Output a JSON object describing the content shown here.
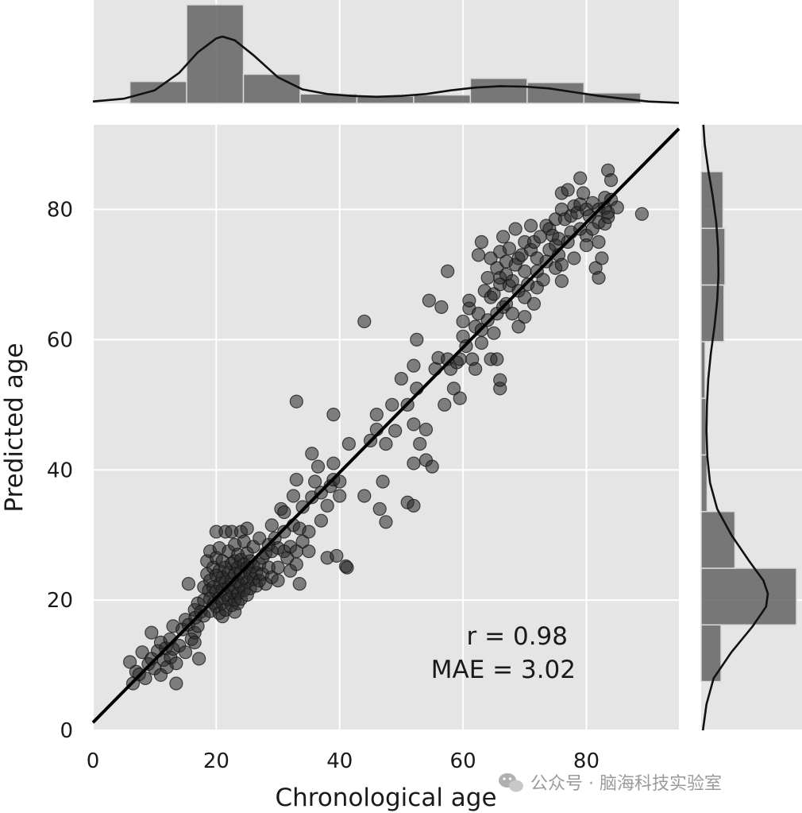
{
  "chart_data": {
    "type": "scatter",
    "xlabel": "Chronological age",
    "ylabel": "Predicted age",
    "xlim": [
      0,
      95
    ],
    "ylim": [
      0,
      93
    ],
    "xticks": [
      0,
      20,
      40,
      60,
      80
    ],
    "yticks": [
      0,
      20,
      40,
      60,
      80
    ],
    "grid": true,
    "marginals": "histogram + kde on top (x) and right (y)",
    "annotation_r": "r = 0.98",
    "annotation_mae": "MAE = 3.02",
    "regression": {
      "slope": 0.96,
      "intercept": 1.2
    },
    "points": [
      [
        6,
        10.5
      ],
      [
        6.5,
        7.2
      ],
      [
        7,
        9
      ],
      [
        7.5,
        8.6
      ],
      [
        8,
        12
      ],
      [
        8.5,
        8
      ],
      [
        9,
        10.2
      ],
      [
        9.5,
        15
      ],
      [
        9.5,
        11
      ],
      [
        10,
        9.5
      ],
      [
        10.5,
        12.2
      ],
      [
        11,
        8.5
      ],
      [
        11,
        13.5
      ],
      [
        11.5,
        10.8
      ],
      [
        11.8,
        12.6
      ],
      [
        12,
        9.7
      ],
      [
        12.5,
        14
      ],
      [
        12.6,
        11.2
      ],
      [
        13,
        16
      ],
      [
        13,
        12.5
      ],
      [
        13.5,
        7.2
      ],
      [
        13.5,
        10.3
      ],
      [
        14,
        13
      ],
      [
        14.5,
        15.5
      ],
      [
        15,
        12
      ],
      [
        15,
        17
      ],
      [
        15.5,
        16.2
      ],
      [
        16,
        14
      ],
      [
        16.5,
        18.5
      ],
      [
        16.5,
        15
      ],
      [
        16.6,
        17.3
      ],
      [
        17,
        16
      ],
      [
        16.5,
        13.5
      ],
      [
        17.2,
        11
      ],
      [
        15.5,
        22.5
      ],
      [
        17,
        19.5
      ],
      [
        17.5,
        18.2
      ],
      [
        18,
        22
      ],
      [
        18,
        20
      ],
      [
        18,
        17.6
      ],
      [
        18.5,
        26
      ],
      [
        18.5,
        24
      ],
      [
        18.8,
        21.5
      ],
      [
        19,
        27.5
      ],
      [
        19,
        23
      ],
      [
        19,
        20.2
      ],
      [
        19,
        18.3
      ],
      [
        19.5,
        25
      ],
      [
        19.5,
        22
      ],
      [
        19.6,
        19.5
      ],
      [
        20,
        30.5
      ],
      [
        20,
        26.5
      ],
      [
        20,
        23.8
      ],
      [
        20,
        21.3
      ],
      [
        20,
        19
      ],
      [
        20.5,
        28
      ],
      [
        20.5,
        24.5
      ],
      [
        20.6,
        22.5
      ],
      [
        20.5,
        20.3
      ],
      [
        20.5,
        18
      ],
      [
        21,
        26
      ],
      [
        21,
        23.5
      ],
      [
        21,
        21.6
      ],
      [
        21,
        19.5
      ],
      [
        21,
        17.5
      ],
      [
        21.5,
        30.5
      ],
      [
        21.5,
        25
      ],
      [
        21.5,
        22.8
      ],
      [
        21.6,
        20.8
      ],
      [
        21.5,
        18.5
      ],
      [
        22,
        27.5
      ],
      [
        22,
        24.2
      ],
      [
        22,
        22
      ],
      [
        22,
        20.1
      ],
      [
        22.5,
        30.5
      ],
      [
        22.5,
        25.6
      ],
      [
        22.5,
        23.2
      ],
      [
        22.6,
        21.2
      ],
      [
        22.5,
        19.2
      ],
      [
        23,
        28.5
      ],
      [
        23,
        26
      ],
      [
        23,
        24
      ],
      [
        23,
        22
      ],
      [
        23,
        20
      ],
      [
        23,
        18.2
      ],
      [
        23.5,
        27
      ],
      [
        23.5,
        25
      ],
      [
        23.5,
        22.8
      ],
      [
        23.5,
        21
      ],
      [
        23.5,
        19.5
      ],
      [
        24,
        30.5
      ],
      [
        24,
        26.2
      ],
      [
        24,
        24.2
      ],
      [
        24,
        22.2
      ],
      [
        24,
        20.2
      ],
      [
        24.5,
        29
      ],
      [
        24.5,
        25.5
      ],
      [
        24.5,
        23.5
      ],
      [
        24.5,
        21.5
      ],
      [
        25,
        31
      ],
      [
        25,
        27.2
      ],
      [
        25,
        25
      ],
      [
        25,
        22.8
      ],
      [
        25,
        20.8
      ],
      [
        25.5,
        26
      ],
      [
        25.5,
        24
      ],
      [
        25.5,
        21.8
      ],
      [
        26,
        28.2
      ],
      [
        26,
        25.2
      ],
      [
        26,
        23.2
      ],
      [
        26.5,
        24.2
      ],
      [
        26.5,
        22.2
      ],
      [
        27,
        29.5
      ],
      [
        27,
        25.5
      ],
      [
        27,
        23
      ],
      [
        27.5,
        26.5
      ],
      [
        27.5,
        24
      ],
      [
        28,
        27.2
      ],
      [
        28,
        22.5
      ],
      [
        28.5,
        28.5
      ],
      [
        28.5,
        25
      ],
      [
        29,
        31.5
      ],
      [
        29,
        27.5
      ],
      [
        29,
        23.5
      ],
      [
        29.5,
        29.5
      ],
      [
        30,
        28
      ],
      [
        30,
        25
      ],
      [
        30,
        23
      ],
      [
        30.5,
        34
      ],
      [
        31,
        33.5
      ],
      [
        31,
        30.5
      ],
      [
        31,
        27.5
      ],
      [
        31.5,
        26.5
      ],
      [
        32,
        24.5
      ],
      [
        32,
        28.2
      ],
      [
        32.5,
        36
      ],
      [
        32.5,
        31.5
      ],
      [
        33,
        38.5
      ],
      [
        33,
        27.5
      ],
      [
        33,
        25.5
      ],
      [
        33.5,
        31
      ],
      [
        33.5,
        22.5
      ],
      [
        34,
        29
      ],
      [
        34,
        34.3
      ],
      [
        35,
        30.5
      ],
      [
        35,
        27.5
      ],
      [
        35.5,
        35.8
      ],
      [
        36,
        38.2
      ],
      [
        36.5,
        40.5
      ],
      [
        37,
        36.5
      ],
      [
        37,
        32.2
      ],
      [
        38,
        26.5
      ],
      [
        38,
        34.5
      ],
      [
        38.5,
        37.5
      ],
      [
        39,
        41
      ],
      [
        39,
        38.5
      ],
      [
        39.5,
        26.8
      ],
      [
        40,
        36
      ],
      [
        40,
        38.2
      ],
      [
        41,
        25.2
      ],
      [
        41.2,
        25
      ],
      [
        33,
        50.5
      ],
      [
        35.5,
        42.5
      ],
      [
        39,
        48.5
      ],
      [
        41.5,
        44
      ],
      [
        44,
        36
      ],
      [
        44,
        62.8
      ],
      [
        45,
        44.5
      ],
      [
        46,
        48.5
      ],
      [
        46,
        46.2
      ],
      [
        46.5,
        34
      ],
      [
        47,
        38.2
      ],
      [
        47.5,
        44
      ],
      [
        47.5,
        32
      ],
      [
        48.5,
        50
      ],
      [
        49,
        46
      ],
      [
        50,
        54
      ],
      [
        51,
        50
      ],
      [
        51,
        35
      ],
      [
        52,
        56
      ],
      [
        52,
        34.5
      ],
      [
        52,
        41
      ],
      [
        52,
        47
      ],
      [
        52.5,
        60
      ],
      [
        52.5,
        52.5
      ],
      [
        53,
        44
      ],
      [
        54,
        46.2
      ],
      [
        54,
        41.5
      ],
      [
        54.5,
        66
      ],
      [
        55,
        40.5
      ],
      [
        55.5,
        55.5
      ],
      [
        56,
        57.2
      ],
      [
        56.5,
        65
      ],
      [
        57,
        50
      ],
      [
        57.5,
        57
      ],
      [
        57.5,
        70.5
      ],
      [
        58,
        55.5
      ],
      [
        58.5,
        52.5
      ],
      [
        59,
        56.5
      ],
      [
        59.5,
        51
      ],
      [
        59.5,
        57
      ],
      [
        60,
        60.5
      ],
      [
        60,
        62.8
      ],
      [
        60.5,
        59
      ],
      [
        61,
        64.8
      ],
      [
        61,
        66
      ],
      [
        61.5,
        57
      ],
      [
        62,
        55.5
      ],
      [
        62,
        62
      ],
      [
        62.5,
        64
      ],
      [
        62.5,
        73
      ],
      [
        63,
        59.5
      ],
      [
        63,
        61.5
      ],
      [
        63,
        75
      ],
      [
        63.5,
        67.5
      ],
      [
        64,
        63
      ],
      [
        64,
        69.5
      ],
      [
        64.5,
        66.5
      ],
      [
        64.5,
        57
      ],
      [
        64.5,
        72.5
      ],
      [
        65,
        67
      ],
      [
        65,
        61
      ],
      [
        65.5,
        64
      ],
      [
        65.5,
        71
      ],
      [
        65.5,
        57
      ],
      [
        66,
        68.5
      ],
      [
        66,
        73.5
      ],
      [
        66,
        69.5
      ],
      [
        66,
        52.5
      ],
      [
        66,
        53.8
      ],
      [
        66.5,
        65
      ],
      [
        66.5,
        75.8
      ],
      [
        67,
        70
      ],
      [
        67,
        65.5
      ],
      [
        67,
        72
      ],
      [
        67.5,
        74
      ],
      [
        67.5,
        68.3
      ],
      [
        68,
        69
      ],
      [
        68,
        64
      ],
      [
        68.5,
        71.5
      ],
      [
        68.5,
        77
      ],
      [
        69,
        72.5
      ],
      [
        69,
        67.5
      ],
      [
        69,
        62
      ],
      [
        69.5,
        73
      ],
      [
        70,
        66.5
      ],
      [
        70,
        70.5
      ],
      [
        70,
        75
      ],
      [
        70,
        63.5
      ],
      [
        70.5,
        68.5
      ],
      [
        71,
        77.5
      ],
      [
        71,
        73.8
      ],
      [
        71.5,
        65.5
      ],
      [
        71.5,
        75
      ],
      [
        72,
        70.5
      ],
      [
        72,
        68
      ],
      [
        72,
        72.5
      ],
      [
        72.5,
        75.8
      ],
      [
        73,
        69.2
      ],
      [
        73.5,
        77.5
      ],
      [
        73.5,
        72
      ],
      [
        74,
        73.8
      ],
      [
        74,
        77
      ],
      [
        74.5,
        76
      ],
      [
        75,
        71
      ],
      [
        75,
        74.5
      ],
      [
        75,
        78.5
      ],
      [
        75.5,
        73
      ],
      [
        75.5,
        75.5
      ],
      [
        76,
        80
      ],
      [
        76,
        82.5
      ],
      [
        76,
        71.5
      ],
      [
        76,
        69
      ],
      [
        76.5,
        78.5
      ],
      [
        77,
        75
      ],
      [
        77,
        83
      ],
      [
        77.5,
        79
      ],
      [
        77.5,
        76.5
      ],
      [
        78,
        80.5
      ],
      [
        78,
        72.5
      ],
      [
        78.5,
        79.5
      ],
      [
        79,
        80.8
      ],
      [
        79,
        77
      ],
      [
        79,
        84.8
      ],
      [
        79.5,
        82.5
      ],
      [
        80,
        76
      ],
      [
        80,
        80
      ],
      [
        80,
        74.5
      ],
      [
        80.5,
        79
      ],
      [
        81,
        81
      ],
      [
        81,
        77
      ],
      [
        81.5,
        71
      ],
      [
        82,
        78
      ],
      [
        82,
        75
      ],
      [
        82,
        80
      ],
      [
        82,
        69.5
      ],
      [
        82.5,
        72.5
      ],
      [
        83,
        77.8
      ],
      [
        83,
        81.8
      ],
      [
        83,
        80.2
      ],
      [
        83.5,
        78.8
      ],
      [
        83.5,
        86
      ],
      [
        83.5,
        79.5
      ],
      [
        84,
        84.5
      ],
      [
        84,
        81.5
      ],
      [
        85,
        80.3
      ],
      [
        89,
        79.3
      ]
    ],
    "hist_x": {
      "bin_edges": [
        6,
        15.2,
        24.4,
        33.6,
        42.8,
        52.0,
        61.2,
        70.4,
        79.6,
        88.8
      ],
      "counts": [
        21,
        95,
        28,
        9,
        7,
        8,
        24,
        20,
        10
      ]
    },
    "kde_x": [
      [
        0,
        2
      ],
      [
        5,
        5
      ],
      [
        10,
        14
      ],
      [
        14,
        33
      ],
      [
        17,
        55
      ],
      [
        20,
        70
      ],
      [
        21,
        72
      ],
      [
        23,
        68
      ],
      [
        26,
        52
      ],
      [
        30,
        28
      ],
      [
        34,
        15
      ],
      [
        38,
        10
      ],
      [
        42,
        8
      ],
      [
        46,
        7
      ],
      [
        50,
        8
      ],
      [
        54,
        10
      ],
      [
        58,
        14
      ],
      [
        62,
        17
      ],
      [
        66,
        18.5
      ],
      [
        70,
        18
      ],
      [
        74,
        16
      ],
      [
        78,
        12
      ],
      [
        82,
        8
      ],
      [
        86,
        5
      ],
      [
        90,
        2
      ],
      [
        95,
        0.5
      ]
    ],
    "hist_y": {
      "bin_edges": [
        7.5,
        16.2,
        24.9,
        33.6,
        42.3,
        51.0,
        59.7,
        68.4,
        77.1,
        85.8
      ],
      "counts": [
        20,
        96,
        34,
        6,
        5,
        4,
        23,
        24,
        22
      ]
    },
    "kde_y": [
      [
        0,
        2
      ],
      [
        4,
        6
      ],
      [
        8,
        14
      ],
      [
        12,
        34
      ],
      [
        16,
        58
      ],
      [
        19,
        73
      ],
      [
        21,
        75
      ],
      [
        23,
        70
      ],
      [
        26,
        54
      ],
      [
        30,
        34
      ],
      [
        34,
        18
      ],
      [
        38,
        10
      ],
      [
        42,
        7
      ],
      [
        46,
        6
      ],
      [
        50,
        6.5
      ],
      [
        54,
        8
      ],
      [
        58,
        11
      ],
      [
        62,
        15
      ],
      [
        66,
        18
      ],
      [
        70,
        19.5
      ],
      [
        74,
        19
      ],
      [
        78,
        17
      ],
      [
        82,
        13
      ],
      [
        86,
        8
      ],
      [
        90,
        4
      ],
      [
        93,
        2.5
      ]
    ]
  },
  "watermark": {
    "icon": "wechat-icon",
    "text": "公众号 · 脑海科技实验室"
  }
}
